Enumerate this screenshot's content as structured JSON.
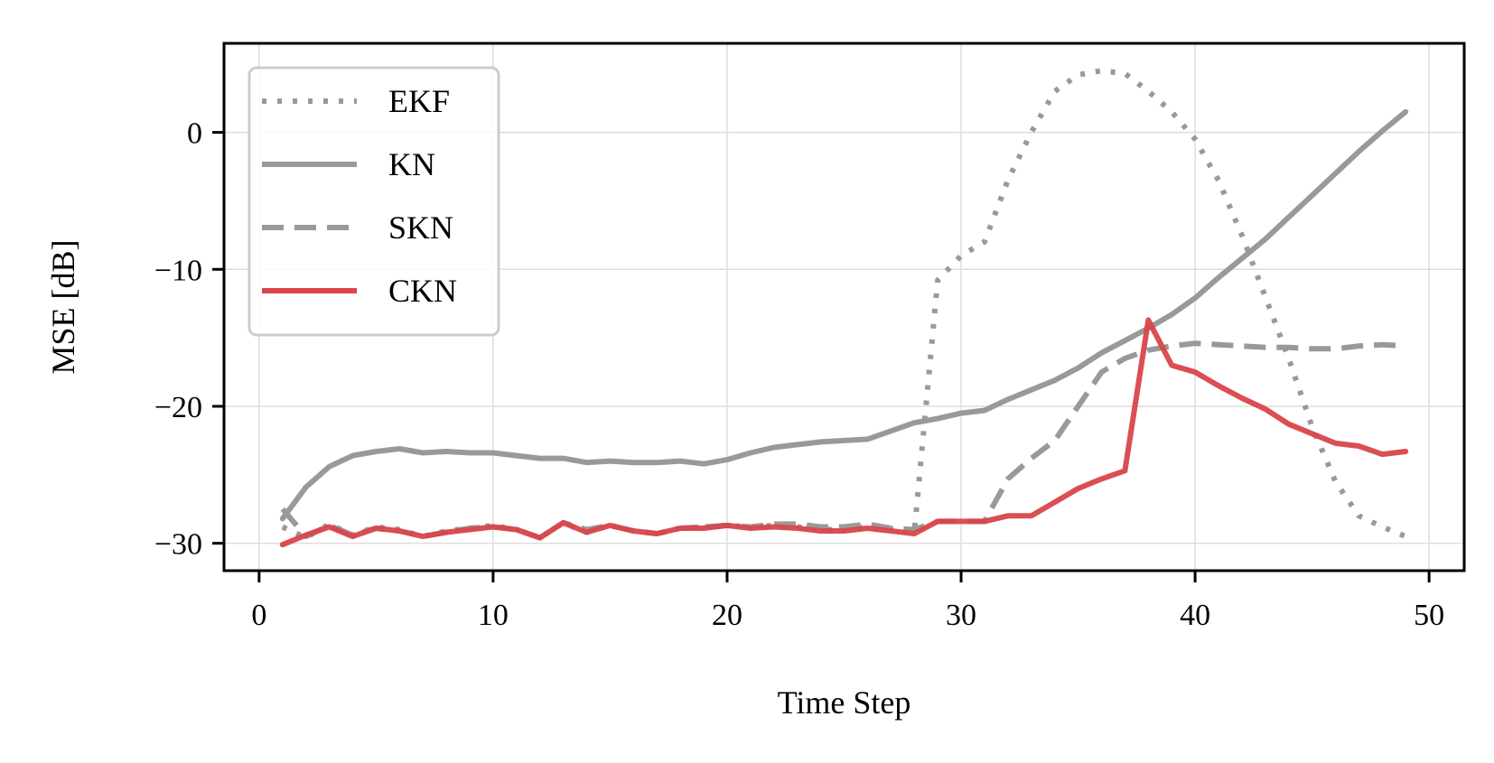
{
  "chart_data": {
    "type": "line",
    "xlabel": "Time Step",
    "ylabel": "MSE [dB]",
    "xlim": [
      -1.5,
      51.5
    ],
    "ylim": [
      -32,
      6.5
    ],
    "xticks": [
      0,
      10,
      20,
      30,
      40,
      50
    ],
    "yticks": [
      0,
      -10,
      -20,
      -30
    ],
    "xtick_labels": [
      "0",
      "10",
      "20",
      "30",
      "40",
      "50"
    ],
    "ytick_labels": [
      "0",
      "−10",
      "−20",
      "−30"
    ],
    "grid": true,
    "legend_position": "top-left",
    "x": [
      1,
      2,
      3,
      4,
      5,
      6,
      7,
      8,
      9,
      10,
      11,
      12,
      13,
      14,
      15,
      16,
      17,
      18,
      19,
      20,
      21,
      22,
      23,
      24,
      25,
      26,
      27,
      28,
      29,
      30,
      31,
      32,
      33,
      34,
      35,
      36,
      37,
      38,
      39,
      40,
      41,
      42,
      43,
      44,
      45,
      46,
      47,
      48,
      49
    ],
    "series": [
      {
        "name": "EKF",
        "style": "dotted",
        "color": "#999999",
        "values": [
          -28.8,
          -29.6,
          -28.6,
          -29.4,
          -28.8,
          -29.0,
          -29.5,
          -29.1,
          -28.9,
          -28.7,
          -29.0,
          -29.6,
          -28.5,
          -29.2,
          -28.7,
          -29.1,
          -29.3,
          -28.9,
          -28.8,
          -28.7,
          -28.8,
          -28.7,
          -28.8,
          -29.0,
          -29.0,
          -28.8,
          -29.0,
          -29.2,
          -10.8,
          -9.0,
          -8.0,
          -3.5,
          0.0,
          3.0,
          4.2,
          4.5,
          4.3,
          3.0,
          1.5,
          -0.5,
          -3.5,
          -7.5,
          -12.0,
          -16.5,
          -21.5,
          -25.5,
          -28.0,
          -28.8,
          -29.5
        ]
      },
      {
        "name": "KN",
        "style": "solid",
        "color": "#999999",
        "values": [
          -28.2,
          -25.9,
          -24.4,
          -23.6,
          -23.3,
          -23.1,
          -23.4,
          -23.3,
          -23.4,
          -23.4,
          -23.6,
          -23.8,
          -23.8,
          -24.1,
          -24.0,
          -24.1,
          -24.1,
          -24.0,
          -24.2,
          -23.9,
          -23.4,
          -23.0,
          -22.8,
          -22.6,
          -22.5,
          -22.4,
          -21.8,
          -21.2,
          -20.9,
          -20.5,
          -20.3,
          -19.5,
          -18.8,
          -18.1,
          -17.2,
          -16.1,
          -15.2,
          -14.3,
          -13.3,
          -12.1,
          -10.6,
          -9.2,
          -7.8,
          -6.2,
          -4.6,
          -3.0,
          -1.4,
          0.1,
          1.5
        ]
      },
      {
        "name": "SKN",
        "style": "dashed",
        "color": "#999999",
        "values": [
          -27.5,
          -29.5,
          -28.7,
          -29.4,
          -28.9,
          -29.1,
          -29.5,
          -29.2,
          -28.9,
          -28.8,
          -29.0,
          -29.6,
          -28.5,
          -29.0,
          -28.7,
          -29.1,
          -29.3,
          -28.9,
          -28.8,
          -28.7,
          -28.8,
          -28.6,
          -28.6,
          -28.8,
          -28.8,
          -28.6,
          -28.9,
          -29.0,
          -28.4,
          -28.4,
          -28.4,
          -25.3,
          -23.8,
          -22.5,
          -20.0,
          -17.5,
          -16.5,
          -15.9,
          -15.6,
          -15.4,
          -15.5,
          -15.6,
          -15.7,
          -15.7,
          -15.8,
          -15.8,
          -15.6,
          -15.5,
          -15.6
        ]
      },
      {
        "name": "CKN",
        "style": "solid",
        "color": "#d94549",
        "values": [
          -30.1,
          -29.4,
          -28.8,
          -29.5,
          -28.9,
          -29.1,
          -29.5,
          -29.2,
          -29.0,
          -28.8,
          -29.0,
          -29.6,
          -28.5,
          -29.2,
          -28.7,
          -29.1,
          -29.3,
          -28.9,
          -28.9,
          -28.7,
          -28.9,
          -28.8,
          -28.9,
          -29.1,
          -29.1,
          -28.9,
          -29.1,
          -29.3,
          -28.4,
          -28.4,
          -28.4,
          -28.0,
          -28.0,
          -27.0,
          -26.0,
          -25.3,
          -24.7,
          -13.7,
          -17.0,
          -17.5,
          -18.5,
          -19.4,
          -20.2,
          -21.3,
          -22.0,
          -22.7,
          -22.9,
          -23.5,
          -23.3
        ]
      }
    ]
  }
}
